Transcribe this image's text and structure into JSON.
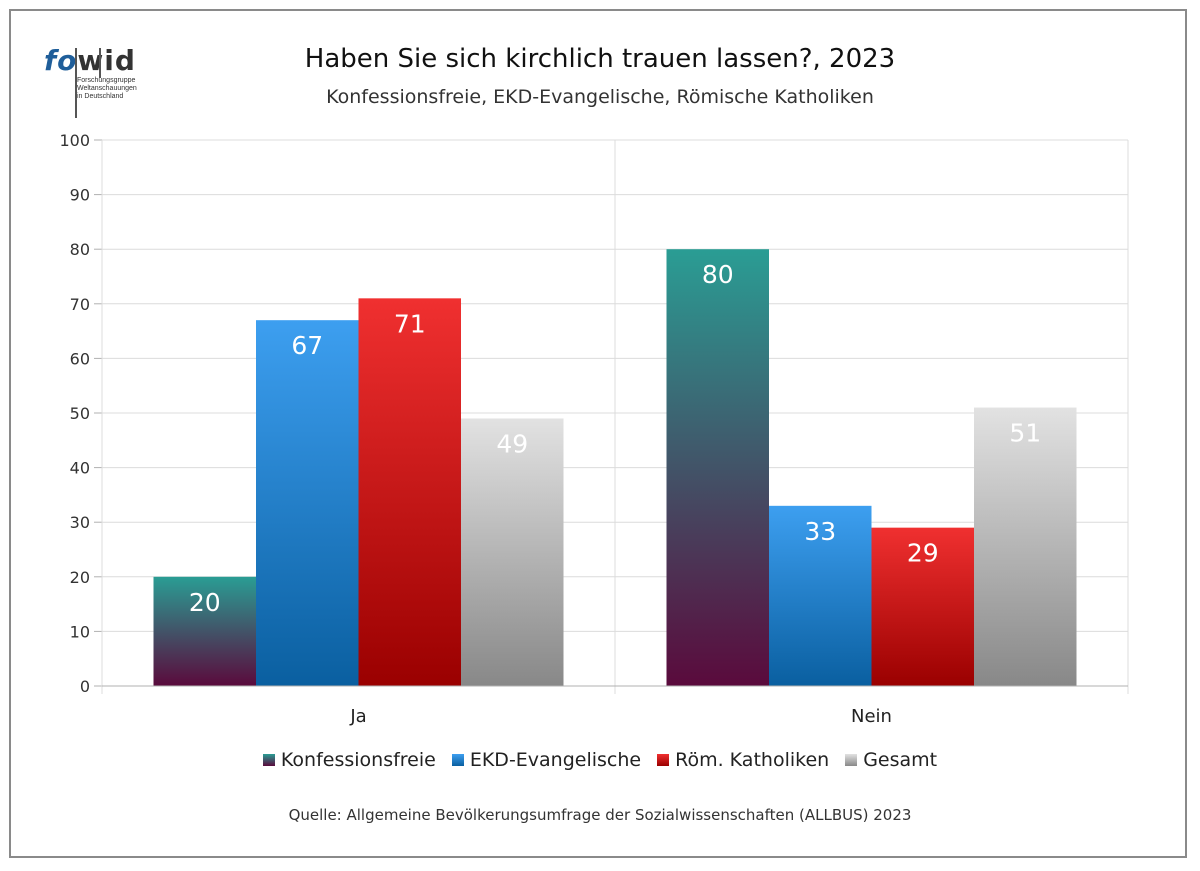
{
  "logo": {
    "word_fo": "fo",
    "word_wid": "wid",
    "sub_lines": [
      "Forschungsgruppe",
      "Weltanschauungen",
      "in Deutschland"
    ]
  },
  "source": "Quelle: Allgemeine Bevölkerungsumfrage der Sozialwissenschaften (ALLBUS) 2023",
  "chart_data": {
    "type": "bar",
    "title": "Haben Sie sich kirchlich trauen lassen?, 2023",
    "subtitle": "Konfessionsfreie, EKD-Evangelische, Römische Katholiken",
    "categories": [
      "Ja",
      "Nein"
    ],
    "series": [
      {
        "name": "Konfessionsfreie",
        "values": [
          20,
          80
        ],
        "color_top": "#2a9d94",
        "color_bottom": "#5a0a3c"
      },
      {
        "name": "EKD-Evangelische",
        "values": [
          67,
          33
        ],
        "color_top": "#3d9ff0",
        "color_bottom": "#0a5fa0"
      },
      {
        "name": "Röm. Katholiken",
        "values": [
          71,
          29
        ],
        "color_top": "#f03030",
        "color_bottom": "#9a0000"
      },
      {
        "name": "Gesamt",
        "values": [
          49,
          51
        ],
        "color_top": "#e2e2e2",
        "color_bottom": "#888888"
      }
    ],
    "ylim": [
      0,
      100
    ],
    "yticks": [
      0,
      10,
      20,
      30,
      40,
      50,
      60,
      70,
      80,
      90,
      100
    ],
    "grid": true,
    "legend": "bottom"
  }
}
